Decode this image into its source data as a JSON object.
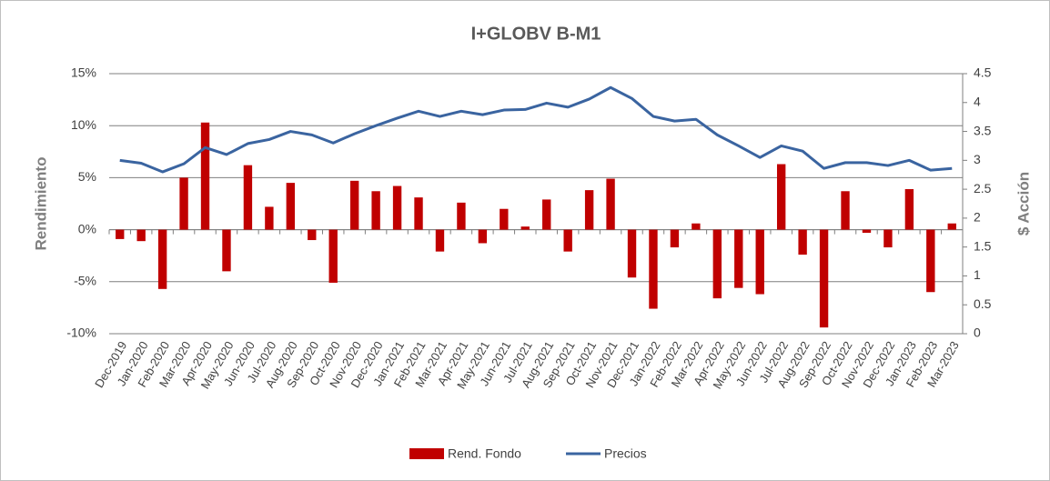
{
  "chart_data": {
    "type": "bar",
    "title": "I+GLOBV B-M1",
    "y_label": "Rendimiento",
    "y2_label": "$ Acción",
    "categories": [
      "Dec-2019",
      "Jan-2020",
      "Feb-2020",
      "Mar-2020",
      "Apr-2020",
      "May-2020",
      "Jun-2020",
      "Jul-2020",
      "Aug-2020",
      "Sep-2020",
      "Oct-2020",
      "Nov-2020",
      "Dec-2020",
      "Jan-2021",
      "Feb-2021",
      "Mar-2021",
      "Apr-2021",
      "May-2021",
      "Jun-2021",
      "Jul-2021",
      "Aug-2021",
      "Sep-2021",
      "Oct-2021",
      "Nov-2021",
      "Dec-2021",
      "Jan-2022",
      "Feb-2022",
      "Mar-2022",
      "Apr-2022",
      "May-2022",
      "Jun-2022",
      "Jul-2022",
      "Aug-2022",
      "Sep-2022",
      "Oct-2022",
      "Nov-2022",
      "Dec-2022",
      "Jan-2023",
      "Feb-2023",
      "Mar-2023"
    ],
    "series": [
      {
        "name": "Rend. Fondo",
        "type": "bar",
        "color": "#c00000",
        "values": [
          -0.9,
          -1.1,
          -5.7,
          5.0,
          10.3,
          -4.0,
          6.2,
          2.2,
          4.5,
          -1.0,
          -5.1,
          4.7,
          3.7,
          4.2,
          3.1,
          -2.1,
          2.6,
          -1.3,
          2.0,
          0.3,
          2.9,
          -2.1,
          3.8,
          4.9,
          -4.6,
          -7.6,
          -1.7,
          0.6,
          -6.6,
          -5.6,
          -6.2,
          6.3,
          -2.4,
          -9.4,
          3.7,
          -0.3,
          -1.7,
          3.9,
          -6.0,
          0.6
        ]
      },
      {
        "name": "Precios",
        "type": "line",
        "axis": "y2",
        "color": "#3a64a0",
        "values": [
          3.0,
          2.95,
          2.8,
          2.94,
          3.22,
          3.1,
          3.29,
          3.36,
          3.5,
          3.44,
          3.3,
          3.46,
          3.6,
          3.73,
          3.85,
          3.76,
          3.85,
          3.79,
          3.87,
          3.88,
          3.99,
          3.92,
          4.06,
          4.26,
          4.07,
          3.76,
          3.68,
          3.71,
          3.44,
          3.25,
          3.05,
          3.25,
          3.16,
          2.86,
          2.96,
          2.96,
          2.91,
          3.0,
          2.83,
          2.86
        ]
      }
    ],
    "ylim": [
      -10,
      15
    ],
    "yticks": [
      {
        "value": -10,
        "label": "-10%"
      },
      {
        "value": -5,
        "label": "-5%"
      },
      {
        "value": 0,
        "label": "0%"
      },
      {
        "value": 5,
        "label": "5%"
      },
      {
        "value": 10,
        "label": "10%"
      },
      {
        "value": 15,
        "label": "15%"
      }
    ],
    "y2lim": [
      0,
      4.5
    ],
    "y2ticks": [
      0,
      0.5,
      1,
      1.5,
      2,
      2.5,
      3,
      3.5,
      4,
      4.5
    ],
    "grid": true,
    "legend": "bottom"
  }
}
